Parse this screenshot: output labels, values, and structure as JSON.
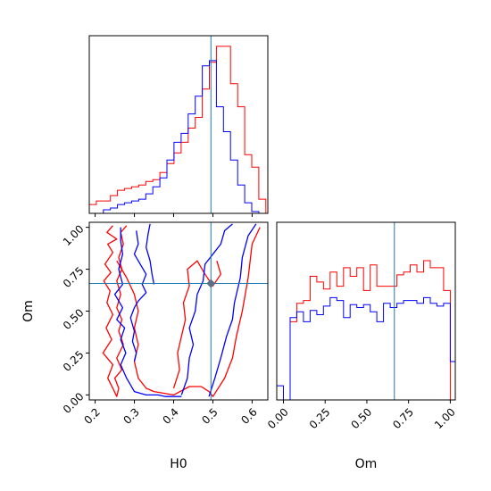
{
  "chart_data": {
    "type": "corner",
    "parameters": [
      "H0",
      "Om"
    ],
    "truth": {
      "H0": 0.495,
      "Om": 0.665
    },
    "truth_color": "#1f77b4",
    "series": [
      {
        "color": "#ff0000"
      },
      {
        "color": "#0000ff"
      }
    ],
    "panels": [
      {
        "kind": "histogram",
        "param": "H0",
        "xlim": [
          0.185,
          0.64
        ],
        "ylim": [
          0,
          1.0
        ],
        "show_xticks": false,
        "bin_edges": [
          0.185,
          0.203,
          0.221,
          0.239,
          0.257,
          0.275,
          0.293,
          0.311,
          0.329,
          0.347,
          0.365,
          0.383,
          0.401,
          0.419,
          0.437,
          0.455,
          0.473,
          0.491,
          0.509,
          0.527,
          0.545,
          0.563,
          0.581,
          0.599,
          0.617,
          0.635
        ],
        "counts": [
          [
            0.05,
            0.07,
            0.07,
            0.1,
            0.13,
            0.14,
            0.15,
            0.16,
            0.18,
            0.19,
            0.23,
            0.28,
            0.34,
            0.4,
            0.48,
            0.54,
            0.7,
            0.85,
            0.94,
            0.94,
            0.73,
            0.6,
            0.33,
            0.26,
            0.08
          ],
          [
            0.0,
            0.0,
            0.02,
            0.03,
            0.05,
            0.06,
            0.07,
            0.08,
            0.11,
            0.15,
            0.2,
            0.3,
            0.4,
            0.45,
            0.56,
            0.66,
            0.83,
            0.86,
            0.6,
            0.46,
            0.3,
            0.16,
            0.06,
            0.01,
            0.0
          ]
        ]
      },
      {
        "kind": "contour",
        "xparam": "H0",
        "yparam": "Om",
        "xlim": [
          0.185,
          0.64
        ],
        "ylim": [
          -0.03,
          1.03
        ],
        "xticks": [
          0.2,
          0.3,
          0.4,
          0.5,
          0.6
        ],
        "xtick_labels": [
          "0.2",
          "0.3",
          "0.4",
          "0.5",
          "0.6"
        ],
        "yticks": [
          0.0,
          0.25,
          0.5,
          0.75,
          1.0
        ],
        "ytick_labels": [
          "0.00",
          "0.25",
          "0.50",
          "0.75",
          "1.00"
        ],
        "xlabel": "H0",
        "ylabel": "Om",
        "contours": [
          {
            "series": 0,
            "points": [
              [
                0.245,
                1.01
              ],
              [
                0.23,
                0.97
              ],
              [
                0.255,
                0.93
              ],
              [
                0.232,
                0.9
              ],
              [
                0.245,
                0.85
              ],
              [
                0.225,
                0.78
              ],
              [
                0.24,
                0.73
              ],
              [
                0.222,
                0.68
              ],
              [
                0.238,
                0.62
              ],
              [
                0.23,
                0.55
              ],
              [
                0.245,
                0.48
              ],
              [
                0.228,
                0.4
              ],
              [
                0.242,
                0.33
              ],
              [
                0.22,
                0.25
              ],
              [
                0.245,
                0.18
              ],
              [
                0.232,
                0.1
              ],
              [
                0.245,
                0.04
              ],
              [
                0.255,
                -0.01
              ],
              [
                0.26,
                0.04
              ],
              [
                0.25,
                0.1
              ],
              [
                0.268,
                0.15
              ],
              [
                0.255,
                0.22
              ],
              [
                0.272,
                0.3
              ],
              [
                0.26,
                0.38
              ],
              [
                0.268,
                0.45
              ],
              [
                0.255,
                0.52
              ],
              [
                0.265,
                0.6
              ],
              [
                0.255,
                0.68
              ],
              [
                0.268,
                0.75
              ],
              [
                0.26,
                0.82
              ],
              [
                0.272,
                0.9
              ],
              [
                0.265,
                0.97
              ],
              [
                0.28,
                1.01
              ]
            ]
          },
          {
            "series": 0,
            "points": [
              [
                0.255,
                0.8
              ],
              [
                0.28,
                0.7
              ],
              [
                0.3,
                0.6
              ],
              [
                0.31,
                0.5
              ],
              [
                0.3,
                0.4
              ],
              [
                0.31,
                0.3
              ],
              [
                0.3,
                0.2
              ],
              [
                0.31,
                0.1
              ],
              [
                0.33,
                0.04
              ],
              [
                0.35,
                0.02
              ],
              [
                0.4,
                0.0
              ],
              [
                0.44,
                0.05
              ],
              [
                0.47,
                0.05
              ],
              [
                0.49,
                0.02
              ],
              [
                0.5,
                -0.01
              ],
              [
                0.53,
                0.1
              ],
              [
                0.55,
                0.22
              ],
              [
                0.56,
                0.35
              ],
              [
                0.575,
                0.5
              ],
              [
                0.59,
                0.7
              ],
              [
                0.6,
                0.9
              ],
              [
                0.62,
                1.0
              ]
            ]
          },
          {
            "series": 0,
            "points": [
              [
                0.4,
                0.04
              ],
              [
                0.415,
                0.15
              ],
              [
                0.41,
                0.25
              ],
              [
                0.42,
                0.35
              ],
              [
                0.43,
                0.45
              ],
              [
                0.425,
                0.55
              ],
              [
                0.44,
                0.65
              ],
              [
                0.435,
                0.75
              ],
              [
                0.46,
                0.8
              ],
              [
                0.48,
                0.72
              ],
              [
                0.5,
                0.65
              ],
              [
                0.52,
                0.72
              ],
              [
                0.51,
                0.8
              ]
            ]
          },
          {
            "series": 1,
            "points": [
              [
                0.265,
                1.0
              ],
              [
                0.265,
                0.92
              ],
              [
                0.27,
                0.84
              ],
              [
                0.26,
                0.75
              ],
              [
                0.27,
                0.66
              ],
              [
                0.25,
                0.6
              ],
              [
                0.27,
                0.52
              ],
              [
                0.255,
                0.45
              ],
              [
                0.275,
                0.4
              ],
              [
                0.265,
                0.33
              ],
              [
                0.278,
                0.25
              ],
              [
                0.265,
                0.18
              ],
              [
                0.28,
                0.1
              ],
              [
                0.3,
                0.02
              ],
              [
                0.33,
                0.0
              ],
              [
                0.36,
                0.0
              ],
              [
                0.38,
                -0.01
              ],
              [
                0.42,
                -0.01
              ]
            ]
          },
          {
            "series": 1,
            "points": [
              [
                0.305,
                0.98
              ],
              [
                0.31,
                0.9
              ],
              [
                0.3,
                0.84
              ],
              [
                0.315,
                0.78
              ],
              [
                0.33,
                0.72
              ],
              [
                0.32,
                0.66
              ],
              [
                0.33,
                0.61
              ],
              [
                0.31,
                0.56
              ],
              [
                0.3,
                0.52
              ],
              [
                0.29,
                0.46
              ],
              [
                0.3,
                0.38
              ],
              [
                0.295,
                0.32
              ],
              [
                0.305,
                0.25
              ],
              [
                0.3,
                0.2
              ]
            ]
          },
          {
            "series": 1,
            "points": [
              [
                0.34,
                1.02
              ],
              [
                0.335,
                0.96
              ],
              [
                0.33,
                0.88
              ],
              [
                0.34,
                0.8
              ],
              [
                0.345,
                0.72
              ],
              [
                0.35,
                0.66
              ]
            ]
          },
          {
            "series": 1,
            "points": [
              [
                0.42,
                0.0
              ],
              [
                0.435,
                0.1
              ],
              [
                0.44,
                0.22
              ],
              [
                0.45,
                0.3
              ],
              [
                0.44,
                0.4
              ],
              [
                0.455,
                0.5
              ],
              [
                0.46,
                0.6
              ],
              [
                0.475,
                0.68
              ],
              [
                0.48,
                0.78
              ],
              [
                0.5,
                0.84
              ],
              [
                0.52,
                0.9
              ],
              [
                0.53,
                0.98
              ],
              [
                0.55,
                1.02
              ]
            ]
          },
          {
            "series": 1,
            "points": [
              [
                0.49,
                -0.01
              ],
              [
                0.505,
                0.1
              ],
              [
                0.52,
                0.22
              ],
              [
                0.535,
                0.35
              ],
              [
                0.55,
                0.45
              ],
              [
                0.555,
                0.55
              ],
              [
                0.57,
                0.7
              ],
              [
                0.575,
                0.82
              ],
              [
                0.59,
                0.95
              ],
              [
                0.61,
                1.02
              ]
            ]
          }
        ]
      },
      {
        "kind": "histogram",
        "param": "Om",
        "xlim": [
          -0.04,
          1.03
        ],
        "ylim": [
          0,
          1.25
        ],
        "xticks": [
          0.0,
          0.25,
          0.5,
          0.75,
          1.0
        ],
        "xtick_labels": [
          "0.00",
          "0.25",
          "0.50",
          "0.75",
          "1.00"
        ],
        "xlabel": "Om",
        "bin_edges": [
          -0.04,
          0.0,
          0.04,
          0.08,
          0.12,
          0.16,
          0.2,
          0.24,
          0.28,
          0.32,
          0.36,
          0.4,
          0.44,
          0.48,
          0.52,
          0.56,
          0.6,
          0.64,
          0.68,
          0.72,
          0.76,
          0.8,
          0.84,
          0.88,
          0.92,
          0.96,
          1.0,
          1.03
        ],
        "counts": [
          [
            0.0,
            0.0,
            0.55,
            0.68,
            0.7,
            0.87,
            0.83,
            0.78,
            0.9,
            0.8,
            0.93,
            0.87,
            0.93,
            0.77,
            0.95,
            0.8,
            0.8,
            0.8,
            0.88,
            0.9,
            0.95,
            0.9,
            0.98,
            0.93,
            0.93,
            0.77,
            0.0
          ],
          [
            0.1,
            0.0,
            0.58,
            0.62,
            0.55,
            0.63,
            0.6,
            0.66,
            0.72,
            0.7,
            0.58,
            0.67,
            0.65,
            0.67,
            0.62,
            0.55,
            0.68,
            0.65,
            0.68,
            0.7,
            0.7,
            0.68,
            0.72,
            0.68,
            0.66,
            0.68,
            0.27
          ]
        ]
      }
    ]
  }
}
